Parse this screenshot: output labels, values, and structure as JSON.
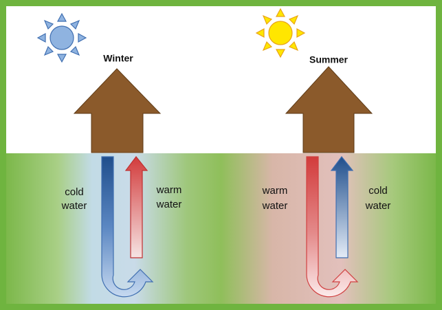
{
  "panels": [
    {
      "title": "Winter",
      "left_label": [
        "cold",
        "water"
      ],
      "right_label": [
        "warm",
        "water"
      ]
    },
    {
      "title": "Summer",
      "left_label": [
        "warm",
        "water"
      ],
      "right_label": [
        "cold",
        "water"
      ]
    }
  ]
}
